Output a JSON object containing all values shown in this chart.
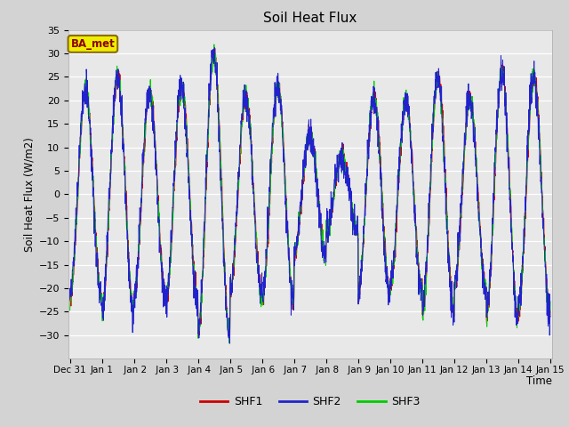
{
  "title": "Soil Heat Flux",
  "ylabel": "Soil Heat Flux (W/m2)",
  "xlabel": "Time",
  "ylim": [
    -35,
    35
  ],
  "yticks": [
    -30,
    -25,
    -20,
    -15,
    -10,
    -5,
    0,
    5,
    10,
    15,
    20,
    25,
    30,
    35
  ],
  "fig_bg_color": "#d3d3d3",
  "plot_bg_color": "#e8e8e8",
  "line_colors": {
    "SHF1": "#cc0000",
    "SHF2": "#2222cc",
    "SHF3": "#00cc00"
  },
  "legend_label": "BA_met",
  "legend_box_facecolor": "#eeee00",
  "legend_box_edgecolor": "#8b6914",
  "xtick_labels": [
    "Dec 31",
    "Jan 1",
    " Jan 2",
    " Jan 3",
    " Jan 4",
    " Jan 5",
    " Jan 6",
    " Jan 7",
    " Jan 8",
    " Jan 9",
    "Jan 10",
    "Jan 11",
    "Jan 12",
    "Jan 13",
    "Jan 14",
    "Jan 15"
  ],
  "n_points": 2160
}
